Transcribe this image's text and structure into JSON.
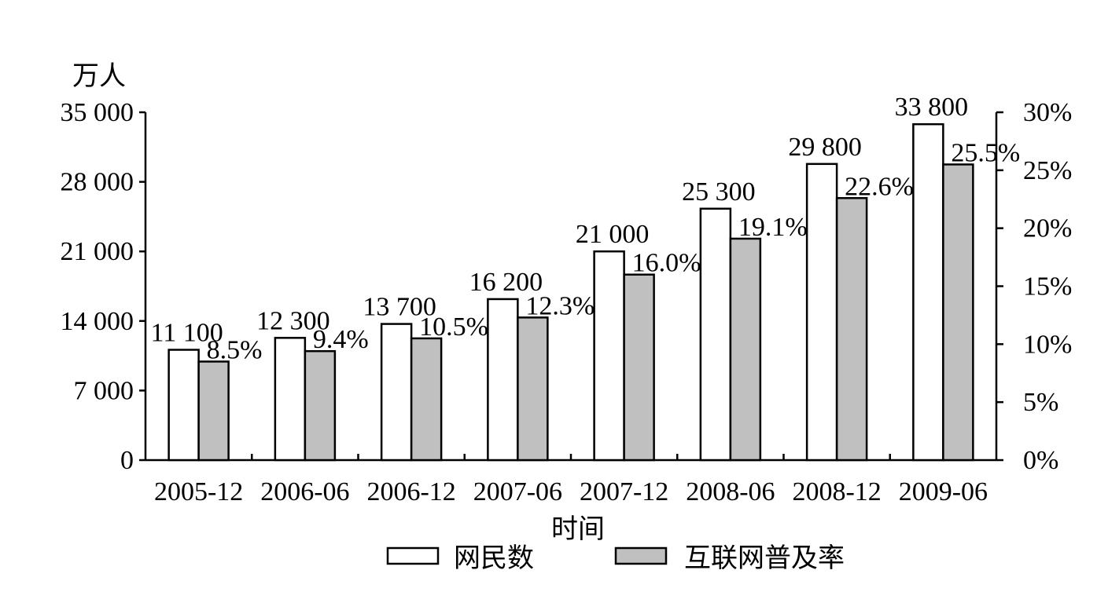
{
  "chart_data": {
    "type": "bar",
    "left_axis_unit": "万人",
    "xlabel": "时间",
    "categories": [
      "2005-12",
      "2006-06",
      "2006-12",
      "2007-06",
      "2007-12",
      "2008-06",
      "2008-12",
      "2009-06"
    ],
    "series": [
      {
        "name": "网民数",
        "axis": "left",
        "color": "#ffffff",
        "values": [
          11100,
          12300,
          13700,
          16200,
          21000,
          25300,
          29800,
          33800
        ],
        "value_labels": [
          "11 100",
          "12 300",
          "13 700",
          "16 200",
          "21 000",
          "25 300",
          "29 800",
          "33 800"
        ]
      },
      {
        "name": "互联网普及率",
        "axis": "right",
        "color": "#c0c0c0",
        "values": [
          8.5,
          9.4,
          10.5,
          12.3,
          16.0,
          19.1,
          22.6,
          25.5
        ],
        "value_labels": [
          "8.5%",
          "9.4%",
          "10.5%",
          "12.3%",
          "16.0%",
          "19.1%",
          "22.6%",
          "25.5%"
        ]
      }
    ],
    "left_axis": {
      "ylim": [
        0,
        35000
      ],
      "ticks": [
        0,
        7000,
        14000,
        21000,
        28000,
        35000
      ],
      "tick_labels": [
        "0",
        "7 000",
        "14 000",
        "21 000",
        "28 000",
        "35 000"
      ]
    },
    "right_axis": {
      "ylim": [
        0,
        30
      ],
      "ticks": [
        0,
        5,
        10,
        15,
        20,
        25,
        30
      ],
      "tick_labels": [
        "0%",
        "5%",
        "10%",
        "15%",
        "20%",
        "25%",
        "30%"
      ]
    },
    "legend_position": "bottom-center",
    "grid": false
  }
}
